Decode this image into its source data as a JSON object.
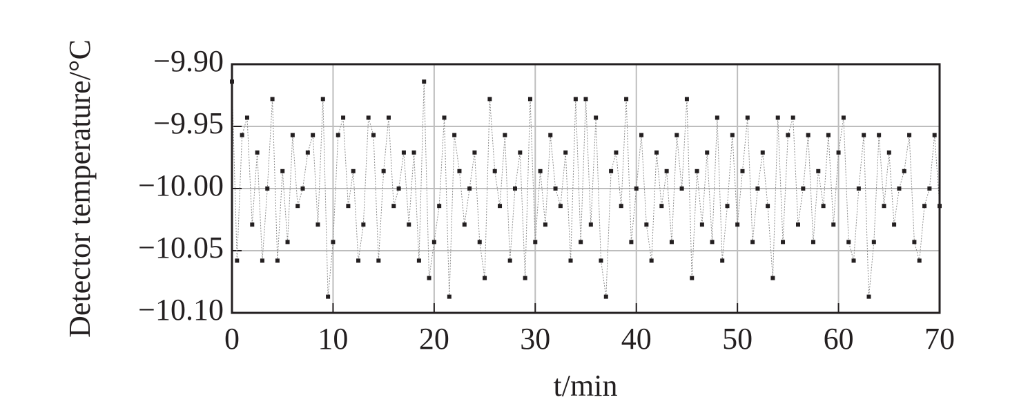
{
  "chart_data": {
    "type": "scatter",
    "ylabel": "Detector temperature/°C",
    "xlabel": "t/min",
    "xlim": [
      0,
      70
    ],
    "xticks": [
      0,
      10,
      20,
      30,
      40,
      50,
      60,
      70
    ],
    "ylim": [
      -10.1,
      -9.9
    ],
    "yticks": [
      {
        "value": -9.9,
        "label": "−9.90"
      },
      {
        "value": -9.95,
        "label": "−9.95"
      },
      {
        "value": -10.0,
        "label": "−10.00"
      },
      {
        "value": -10.05,
        "label": "−10.05"
      },
      {
        "value": -10.1,
        "label": "−10.10"
      }
    ],
    "grid": true,
    "series": [
      {
        "color": "#231f20",
        "x": [
          0,
          0.5,
          1,
          1.5,
          2,
          2.5,
          3,
          3.5,
          4,
          4.5,
          5,
          5.5,
          6,
          6.5,
          7,
          7.5,
          8,
          8.5,
          9,
          9.5,
          10,
          10.5,
          11,
          11.5,
          12,
          12.5,
          13,
          13.5,
          14,
          14.5,
          15,
          15.5,
          16,
          16.5,
          17,
          17.5,
          18,
          18.5,
          19,
          19.5,
          20,
          20.5,
          21,
          21.5,
          22,
          22.5,
          23,
          23.5,
          24,
          24.5,
          25,
          25.5,
          26,
          26.5,
          27,
          27.5,
          28,
          28.5,
          29,
          29.5,
          30,
          30.5,
          31,
          31.5,
          32,
          32.5,
          33,
          33.5,
          34,
          34.5,
          35,
          35.5,
          36,
          36.5,
          37,
          37.5,
          38,
          38.5,
          39,
          39.5,
          40,
          40.5,
          41,
          41.5,
          42,
          42.5,
          43,
          43.5,
          44,
          44.5,
          45,
          45.5,
          46,
          46.5,
          47,
          47.5,
          48,
          48.5,
          49,
          49.5,
          50,
          50.5,
          51,
          51.5,
          52,
          52.5,
          53,
          53.5,
          54,
          54.5,
          55,
          55.5,
          56,
          56.5,
          57,
          57.5,
          58,
          58.5,
          59,
          59.5,
          60,
          60.5,
          61,
          61.5,
          62,
          62.5,
          63,
          63.5,
          64,
          64.5,
          65,
          65.5,
          66,
          66.5,
          67,
          67.5,
          68,
          68.5,
          69,
          69.5,
          70
        ],
        "values": [
          -9.914,
          -10.058,
          -9.957,
          -9.943,
          -10.029,
          -9.971,
          -10.058,
          -10.0,
          -9.928,
          -10.058,
          -9.986,
          -10.043,
          -9.957,
          -10.014,
          -10.0,
          -9.971,
          -9.957,
          -10.029,
          -9.928,
          -10.087,
          -10.043,
          -9.957,
          -9.943,
          -10.014,
          -9.986,
          -10.058,
          -10.029,
          -9.943,
          -9.957,
          -10.058,
          -9.986,
          -9.943,
          -10.014,
          -10.0,
          -9.971,
          -10.029,
          -9.971,
          -10.058,
          -9.914,
          -10.072,
          -10.043,
          -10.014,
          -9.943,
          -10.087,
          -9.957,
          -9.986,
          -10.029,
          -10.0,
          -9.971,
          -10.043,
          -10.072,
          -9.928,
          -9.986,
          -10.014,
          -9.957,
          -10.058,
          -10.0,
          -9.971,
          -10.072,
          -9.928,
          -10.043,
          -9.986,
          -10.029,
          -9.957,
          -10.0,
          -10.014,
          -9.971,
          -10.058,
          -9.928,
          -10.043,
          -9.928,
          -10.029,
          -9.943,
          -10.058,
          -10.087,
          -9.986,
          -9.971,
          -10.014,
          -9.928,
          -10.043,
          -10.0,
          -9.957,
          -10.029,
          -10.058,
          -9.971,
          -10.014,
          -9.986,
          -10.043,
          -9.957,
          -10.0,
          -9.928,
          -10.072,
          -9.986,
          -10.029,
          -9.971,
          -10.043,
          -9.943,
          -10.058,
          -10.014,
          -9.957,
          -10.029,
          -9.986,
          -9.943,
          -10.043,
          -10.0,
          -9.971,
          -10.014,
          -10.072,
          -9.943,
          -10.043,
          -9.957,
          -9.943,
          -10.029,
          -10.0,
          -9.957,
          -10.043,
          -9.986,
          -10.014,
          -9.957,
          -10.029,
          -9.971,
          -9.943,
          -10.043,
          -10.058,
          -10.0,
          -9.957,
          -10.087,
          -10.043,
          -9.957,
          -10.014,
          -9.971,
          -10.029,
          -10.0,
          -9.986,
          -9.957,
          -10.043,
          -10.058,
          -10.014,
          -10.0,
          -9.957,
          -10.014
        ]
      }
    ]
  }
}
